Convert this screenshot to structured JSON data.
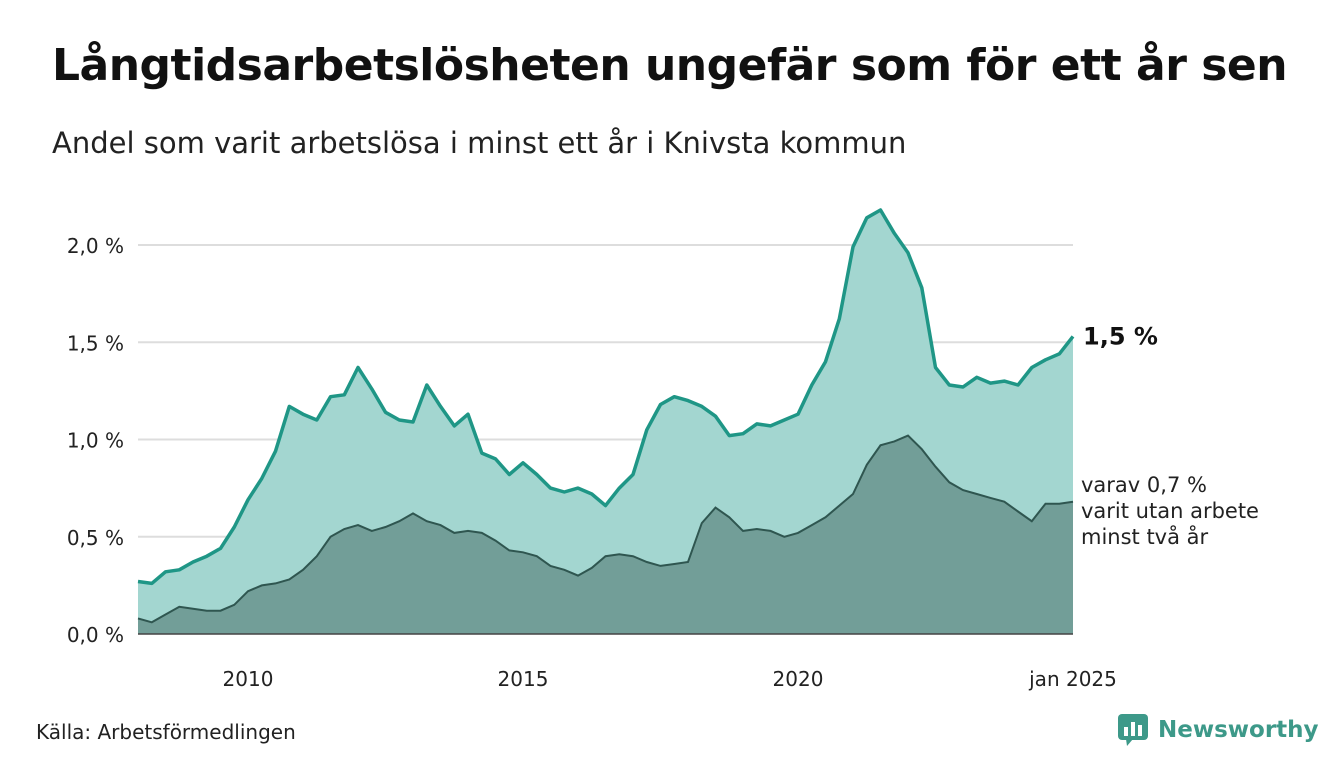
{
  "header": {
    "title": "Långtidsarbetslösheten ungefär som för ett år sen",
    "subtitle": "Andel som varit arbetslösa i minst ett år i Knivsta kommun"
  },
  "footer": {
    "source": "Källa: Arbetsförmedlingen",
    "brand": "Newsworthy",
    "brand_icon": "newsworthy-logo-icon"
  },
  "colors": {
    "total_line": "#1f9686",
    "total_fill": "#a3d6d0",
    "sub_fill": "#729e98",
    "sub_line": "#2f5650",
    "grid": "#dddddd",
    "brand": "#3d9989"
  },
  "chart_data": {
    "type": "area",
    "x_start": "2008-01",
    "x_end": "2025-01",
    "ylim": [
      0,
      2.2
    ],
    "y_ticks": [
      0,
      0.5,
      1.0,
      1.5,
      2.0
    ],
    "y_tick_labels": [
      "0,0 %",
      "0,5 %",
      "1,0 %",
      "1,5 %",
      "2,0 %"
    ],
    "x_ticks": [
      "2010-01",
      "2015-01",
      "2020-01",
      "2025-01"
    ],
    "x_tick_labels": [
      "2010",
      "2015",
      "2020",
      "jan 2025"
    ],
    "grid": true,
    "series": [
      {
        "label": "1,5 %",
        "points": [
          [
            "2008-01",
            0.27
          ],
          [
            "2008-04",
            0.26
          ],
          [
            "2008-07",
            0.32
          ],
          [
            "2008-10",
            0.33
          ],
          [
            "2009-01",
            0.37
          ],
          [
            "2009-04",
            0.4
          ],
          [
            "2009-07",
            0.44
          ],
          [
            "2009-10",
            0.55
          ],
          [
            "2010-01",
            0.69
          ],
          [
            "2010-04",
            0.8
          ],
          [
            "2010-07",
            0.94
          ],
          [
            "2010-10",
            1.17
          ],
          [
            "2011-01",
            1.13
          ],
          [
            "2011-04",
            1.1
          ],
          [
            "2011-07",
            1.22
          ],
          [
            "2011-10",
            1.23
          ],
          [
            "2012-01",
            1.37
          ],
          [
            "2012-04",
            1.26
          ],
          [
            "2012-07",
            1.14
          ],
          [
            "2012-10",
            1.1
          ],
          [
            "2013-01",
            1.09
          ],
          [
            "2013-04",
            1.28
          ],
          [
            "2013-07",
            1.17
          ],
          [
            "2013-10",
            1.07
          ],
          [
            "2014-01",
            1.13
          ],
          [
            "2014-04",
            0.93
          ],
          [
            "2014-07",
            0.9
          ],
          [
            "2014-10",
            0.82
          ],
          [
            "2015-01",
            0.88
          ],
          [
            "2015-04",
            0.82
          ],
          [
            "2015-07",
            0.75
          ],
          [
            "2015-10",
            0.73
          ],
          [
            "2016-01",
            0.75
          ],
          [
            "2016-04",
            0.72
          ],
          [
            "2016-07",
            0.66
          ],
          [
            "2016-10",
            0.75
          ],
          [
            "2017-01",
            0.82
          ],
          [
            "2017-04",
            1.05
          ],
          [
            "2017-07",
            1.18
          ],
          [
            "2017-10",
            1.22
          ],
          [
            "2018-01",
            1.2
          ],
          [
            "2018-04",
            1.17
          ],
          [
            "2018-07",
            1.12
          ],
          [
            "2018-10",
            1.02
          ],
          [
            "2019-01",
            1.03
          ],
          [
            "2019-04",
            1.08
          ],
          [
            "2019-07",
            1.07
          ],
          [
            "2019-10",
            1.1
          ],
          [
            "2020-01",
            1.13
          ],
          [
            "2020-04",
            1.28
          ],
          [
            "2020-07",
            1.4
          ],
          [
            "2020-10",
            1.62
          ],
          [
            "2021-01",
            1.99
          ],
          [
            "2021-04",
            2.14
          ],
          [
            "2021-07",
            2.18
          ],
          [
            "2021-10",
            2.06
          ],
          [
            "2022-01",
            1.96
          ],
          [
            "2022-04",
            1.78
          ],
          [
            "2022-07",
            1.37
          ],
          [
            "2022-10",
            1.28
          ],
          [
            "2023-01",
            1.27
          ],
          [
            "2023-04",
            1.32
          ],
          [
            "2023-07",
            1.29
          ],
          [
            "2023-10",
            1.3
          ],
          [
            "2024-01",
            1.28
          ],
          [
            "2024-04",
            1.37
          ],
          [
            "2024-07",
            1.41
          ],
          [
            "2024-10",
            1.44
          ],
          [
            "2025-01",
            1.53
          ]
        ]
      },
      {
        "label": "varav 0,7 %",
        "label_lines": [
          "varav 0,7 %",
          "varit utan arbete",
          "minst två år"
        ],
        "points": [
          [
            "2008-01",
            0.08
          ],
          [
            "2008-04",
            0.06
          ],
          [
            "2008-07",
            0.1
          ],
          [
            "2008-10",
            0.14
          ],
          [
            "2009-01",
            0.13
          ],
          [
            "2009-04",
            0.12
          ],
          [
            "2009-07",
            0.12
          ],
          [
            "2009-10",
            0.15
          ],
          [
            "2010-01",
            0.22
          ],
          [
            "2010-04",
            0.25
          ],
          [
            "2010-07",
            0.26
          ],
          [
            "2010-10",
            0.28
          ],
          [
            "2011-01",
            0.33
          ],
          [
            "2011-04",
            0.4
          ],
          [
            "2011-07",
            0.5
          ],
          [
            "2011-10",
            0.54
          ],
          [
            "2012-01",
            0.56
          ],
          [
            "2012-04",
            0.53
          ],
          [
            "2012-07",
            0.55
          ],
          [
            "2012-10",
            0.58
          ],
          [
            "2013-01",
            0.62
          ],
          [
            "2013-04",
            0.58
          ],
          [
            "2013-07",
            0.56
          ],
          [
            "2013-10",
            0.52
          ],
          [
            "2014-01",
            0.53
          ],
          [
            "2014-04",
            0.52
          ],
          [
            "2014-07",
            0.48
          ],
          [
            "2014-10",
            0.43
          ],
          [
            "2015-01",
            0.42
          ],
          [
            "2015-04",
            0.4
          ],
          [
            "2015-07",
            0.35
          ],
          [
            "2015-10",
            0.33
          ],
          [
            "2016-01",
            0.3
          ],
          [
            "2016-04",
            0.34
          ],
          [
            "2016-07",
            0.4
          ],
          [
            "2016-10",
            0.41
          ],
          [
            "2017-01",
            0.4
          ],
          [
            "2017-04",
            0.37
          ],
          [
            "2017-07",
            0.35
          ],
          [
            "2017-10",
            0.36
          ],
          [
            "2018-01",
            0.37
          ],
          [
            "2018-04",
            0.57
          ],
          [
            "2018-07",
            0.65
          ],
          [
            "2018-10",
            0.6
          ],
          [
            "2019-01",
            0.53
          ],
          [
            "2019-04",
            0.54
          ],
          [
            "2019-07",
            0.53
          ],
          [
            "2019-10",
            0.5
          ],
          [
            "2020-01",
            0.52
          ],
          [
            "2020-04",
            0.56
          ],
          [
            "2020-07",
            0.6
          ],
          [
            "2020-10",
            0.66
          ],
          [
            "2021-01",
            0.72
          ],
          [
            "2021-04",
            0.87
          ],
          [
            "2021-07",
            0.97
          ],
          [
            "2021-10",
            0.99
          ],
          [
            "2022-01",
            1.02
          ],
          [
            "2022-04",
            0.95
          ],
          [
            "2022-07",
            0.86
          ],
          [
            "2022-10",
            0.78
          ],
          [
            "2023-01",
            0.74
          ],
          [
            "2023-04",
            0.72
          ],
          [
            "2023-07",
            0.7
          ],
          [
            "2023-10",
            0.68
          ],
          [
            "2024-01",
            0.63
          ],
          [
            "2024-04",
            0.58
          ],
          [
            "2024-07",
            0.67
          ],
          [
            "2024-10",
            0.67
          ],
          [
            "2025-01",
            0.68
          ]
        ]
      }
    ]
  }
}
